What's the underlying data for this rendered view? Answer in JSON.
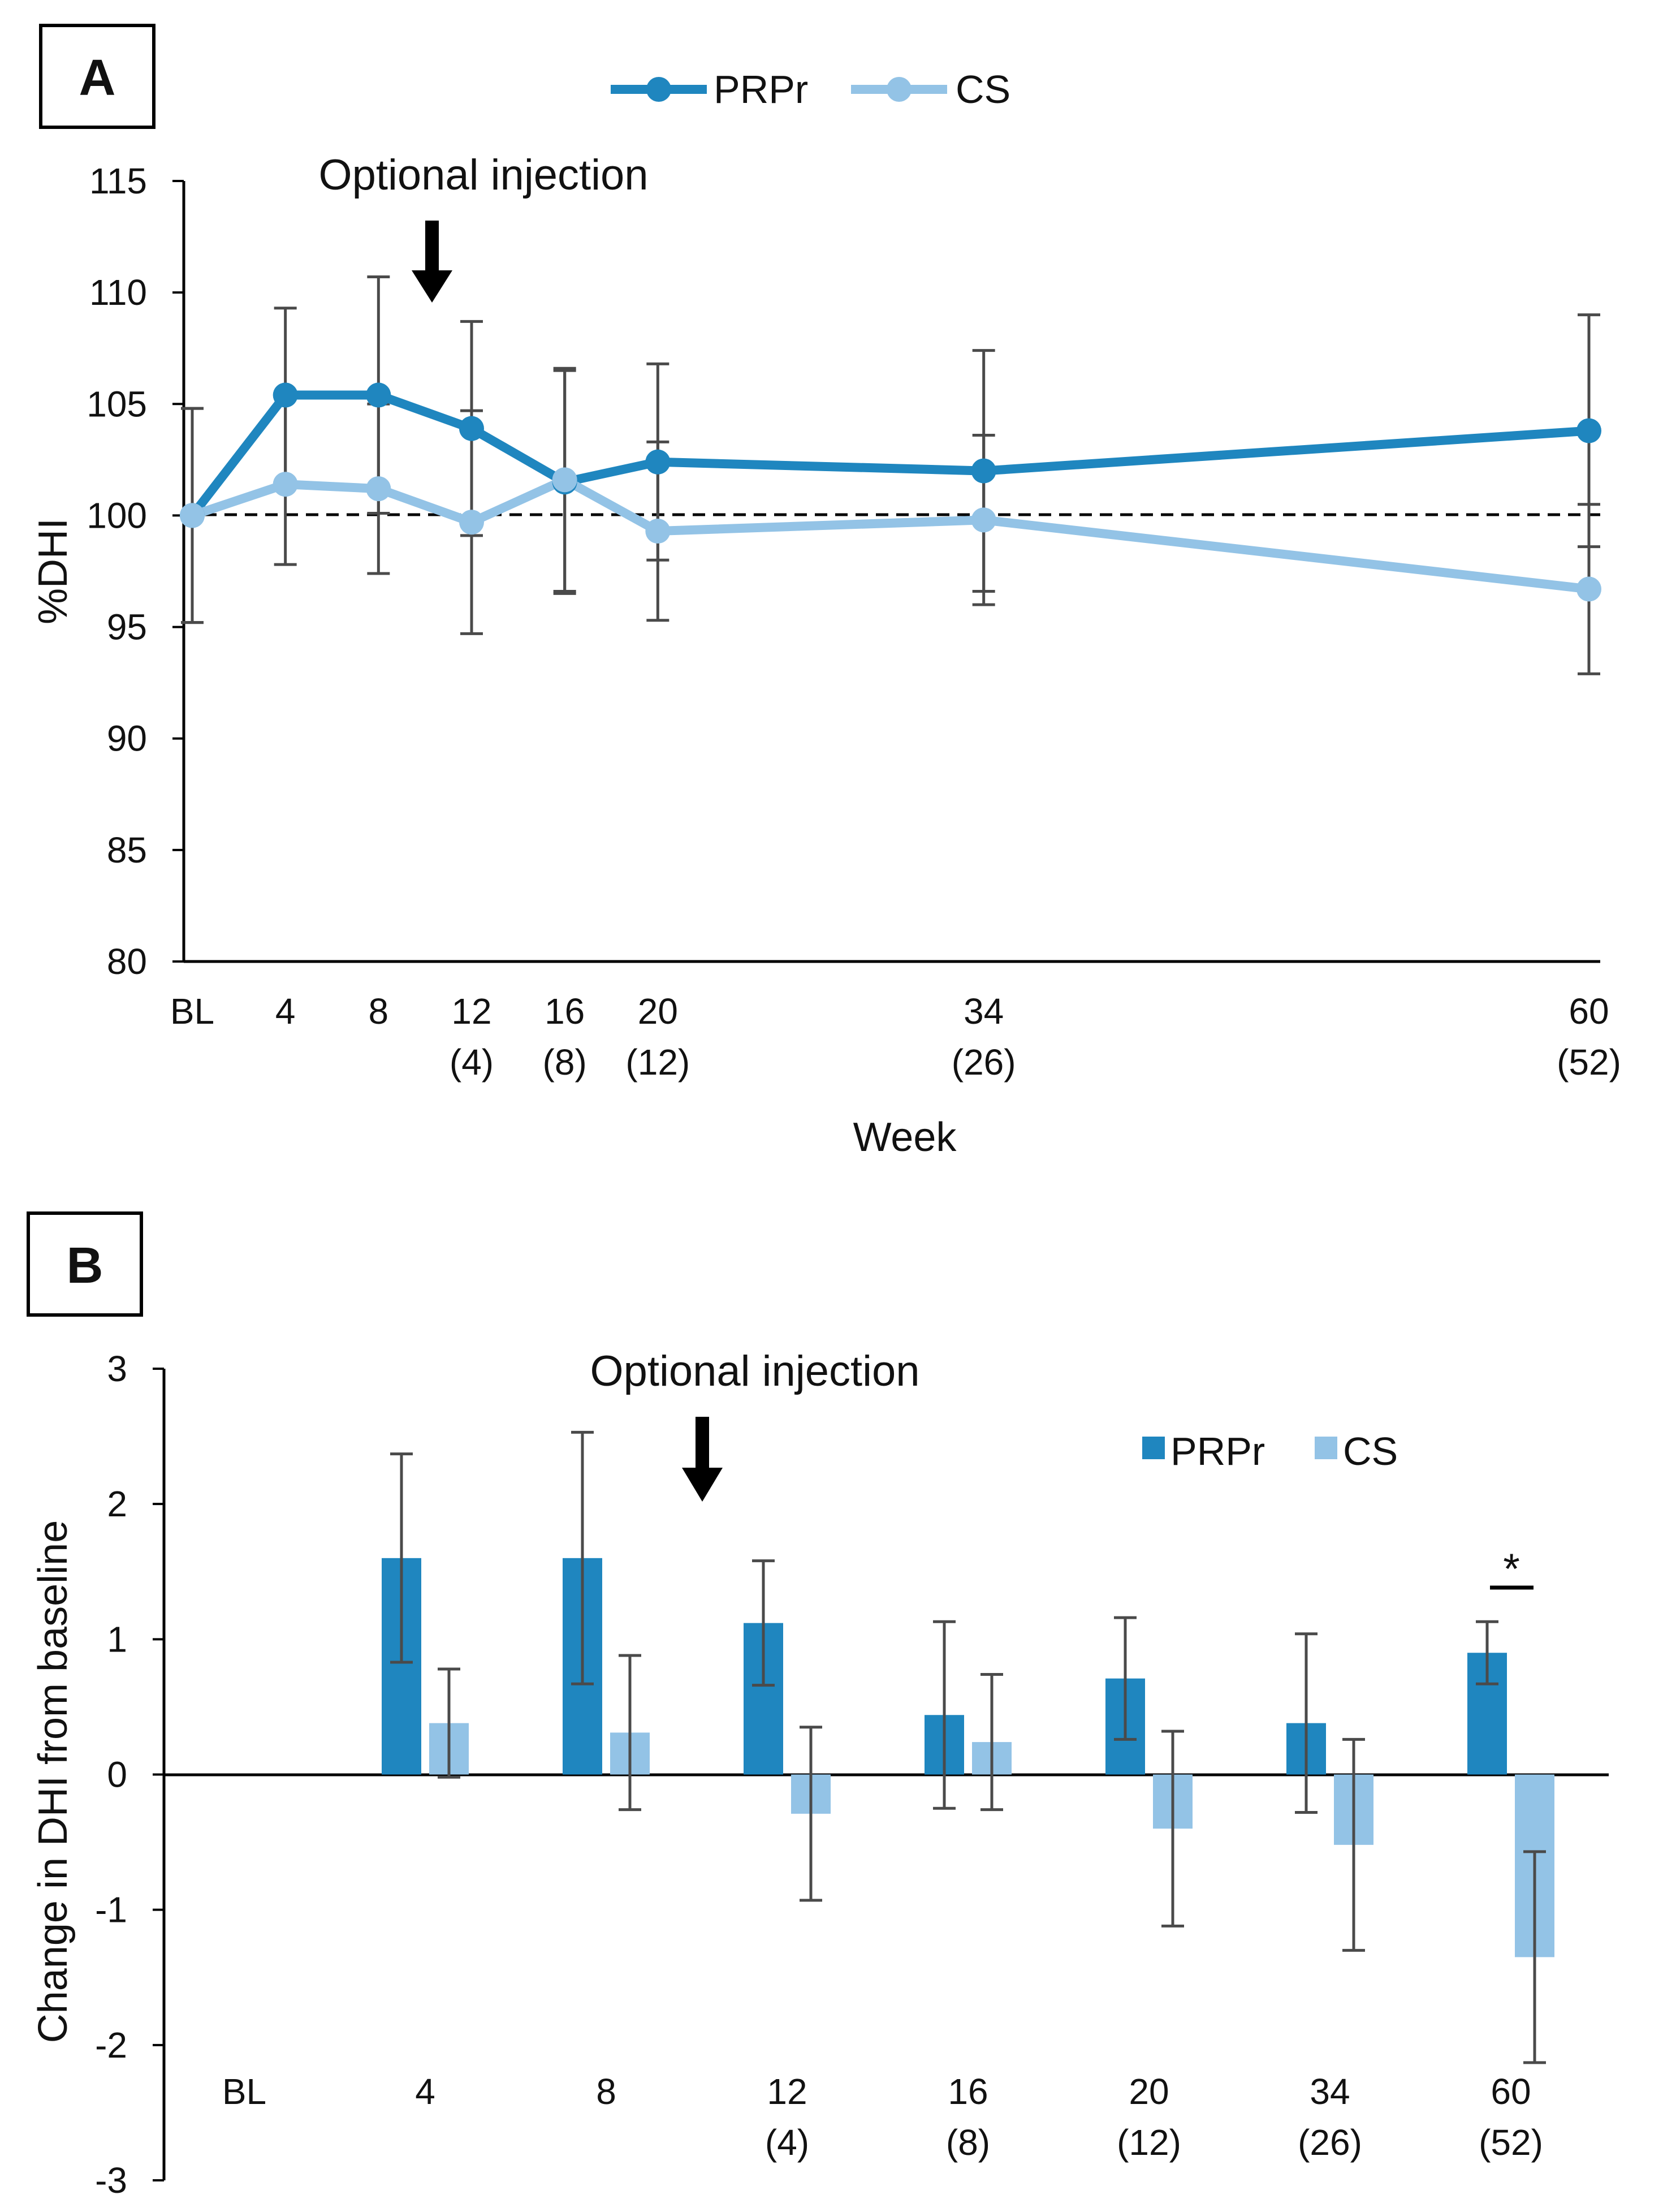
{
  "colors": {
    "prpr": "#1f86bf",
    "cs": "#93c3e6",
    "errorbar": "#4a4a4a",
    "axis": "#000000"
  },
  "chart_data": [
    {
      "panel": "A",
      "type": "line",
      "title": "",
      "xlabel": "Week",
      "ylabel": "%DHI",
      "ylim": [
        80,
        115
      ],
      "y_ticks": [
        "80",
        "85",
        "90",
        "95",
        "100",
        "105",
        "110",
        "115"
      ],
      "x_weeks": [
        0,
        4,
        8,
        12,
        16,
        20,
        34,
        60
      ],
      "x_tick_labels": [
        {
          "week": 0,
          "line1": "BL",
          "line2": ""
        },
        {
          "week": 4,
          "line1": "4",
          "line2": ""
        },
        {
          "week": 8,
          "line1": "8",
          "line2": ""
        },
        {
          "week": 12,
          "line1": "12",
          "line2": "(4)"
        },
        {
          "week": 16,
          "line1": "16",
          "line2": "(8)"
        },
        {
          "week": 20,
          "line1": "20",
          "line2": "(12)"
        },
        {
          "week": 34,
          "line1": "34",
          "line2": "(26)"
        },
        {
          "week": 60,
          "line1": "60",
          "line2": "(52)"
        }
      ],
      "reference_line": 100,
      "annotation": {
        "text": "Optional injection",
        "week": 10
      },
      "legend": [
        "PRPr",
        "CS"
      ],
      "series": [
        {
          "name": "PRPr",
          "values": [
            100,
            105.4,
            105.4,
            103.9,
            101.5,
            102.4,
            102.0,
            103.8
          ],
          "err_upper": [
            4.8,
            3.9,
            5.3,
            4.8,
            5.0,
            4.4,
            5.4,
            5.2
          ],
          "err_lower": [
            4.8,
            3.9,
            5.3,
            4.8,
            5.0,
            4.4,
            5.4,
            5.2
          ]
        },
        {
          "name": "CS",
          "values": [
            100,
            101.4,
            101.2,
            99.7,
            101.6,
            99.3,
            99.8,
            96.7
          ],
          "err_upper": [
            4.8,
            3.9,
            3.8,
            5.0,
            5.0,
            4.0,
            3.8,
            3.8
          ],
          "err_lower": [
            4.8,
            3.6,
            3.8,
            5.0,
            5.0,
            4.0,
            3.8,
            3.8
          ]
        }
      ]
    },
    {
      "panel": "B",
      "type": "bar",
      "title": "",
      "xlabel": "",
      "ylabel": "Change in DHI from baseline",
      "ylim": [
        -3,
        3
      ],
      "y_ticks": [
        "-3",
        "-2",
        "-1",
        "0",
        "1",
        "2",
        "3"
      ],
      "categories": [
        {
          "line1": "BL",
          "line2": ""
        },
        {
          "line1": "4",
          "line2": ""
        },
        {
          "line1": "8",
          "line2": ""
        },
        {
          "line1": "12",
          "line2": "(4)"
        },
        {
          "line1": "16",
          "line2": "(8)"
        },
        {
          "line1": "20",
          "line2": "(12)"
        },
        {
          "line1": "34",
          "line2": "(26)"
        },
        {
          "line1": "60",
          "line2": "(52)"
        }
      ],
      "annotation": {
        "text": "Optional injection",
        "after_category_index": 2
      },
      "significance": {
        "text": "*",
        "category_index": 7
      },
      "legend": [
        "PRPr",
        "CS"
      ],
      "series": [
        {
          "name": "PRPr",
          "values": [
            null,
            1.6,
            1.6,
            1.12,
            0.44,
            0.71,
            0.38,
            0.9
          ],
          "err": [
            null,
            0.77,
            0.93,
            0.46,
            0.69,
            0.45,
            0.66,
            0.23
          ]
        },
        {
          "name": "CS",
          "values": [
            null,
            0.38,
            0.31,
            -0.29,
            0.24,
            -0.4,
            -0.52,
            -1.35
          ],
          "err": [
            null,
            0.4,
            0.57,
            0.64,
            0.5,
            0.72,
            0.78,
            0.78
          ]
        }
      ]
    }
  ]
}
